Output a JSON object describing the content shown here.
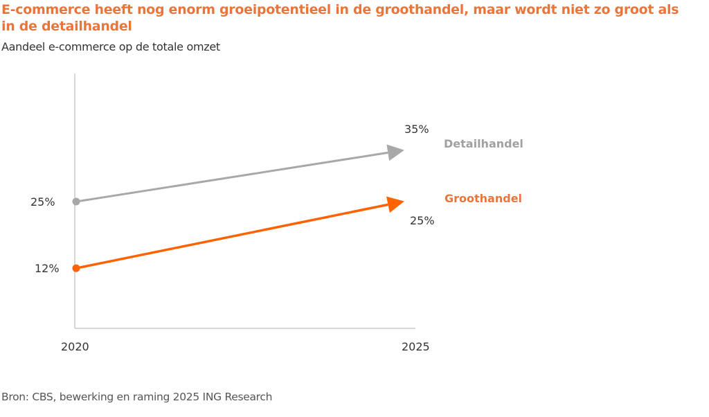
{
  "title": "E-commerce heeft nog enorm groeipotentieel in de groothandel, maar wordt niet zo groot als in de detailhandel",
  "subtitle": "Aandeel e-commerce op de totale omzet",
  "source": "Bron: CBS, bewerking en raming 2025 ING Research",
  "chart_data": {
    "type": "line",
    "title": "E-commerce heeft nog enorm groeipotentieel in de groothandel, maar wordt niet zo groot als in de detailhandel",
    "subtitle": "Aandeel e-commerce op de totale omzet",
    "x": [
      "2020",
      "2025"
    ],
    "xlabel": "",
    "ylabel": "",
    "ylim": [
      0,
      40
    ],
    "grid": false,
    "legend": "inline-right",
    "series": [
      {
        "name": "Detailhandel",
        "values": [
          25,
          35
        ],
        "labels": [
          "25%",
          "35%"
        ],
        "color": "#a8a8a8"
      },
      {
        "name": "Groothandel",
        "values": [
          12,
          25
        ],
        "labels": [
          "12%",
          "25%"
        ],
        "color": "#ff6200"
      }
    ],
    "source": "Bron: CBS, bewerking en raming 2025 ING Research"
  }
}
